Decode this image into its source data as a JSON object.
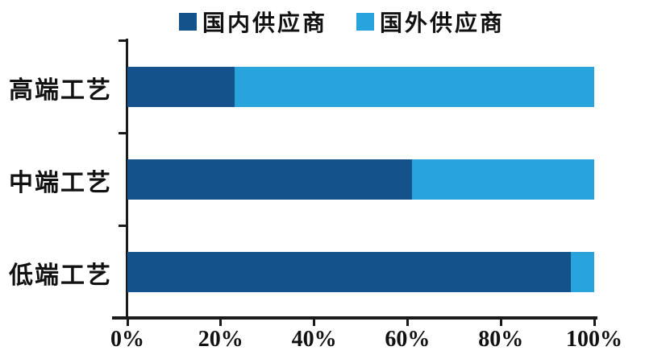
{
  "chart_data": {
    "type": "bar",
    "variant": "horizontal-stacked",
    "title": "",
    "categories": [
      "高端工艺",
      "中端工艺",
      "低端工艺"
    ],
    "series": [
      {
        "name": "国内供应商",
        "color": "#14528c",
        "values": [
          23,
          61,
          95
        ]
      },
      {
        "name": "国外供应商",
        "color": "#29a3dc",
        "values": [
          77,
          39,
          5
        ]
      }
    ],
    "x_tick_labels": [
      "0%",
      "20%",
      "40%",
      "60%",
      "80%",
      "100%"
    ],
    "xlim": [
      0,
      100
    ],
    "unit": "percent",
    "legend_position": "top-center",
    "grid": false,
    "axis_color": "#1a1a1a",
    "text_color": "#111111",
    "background_color": "#ffffff"
  }
}
